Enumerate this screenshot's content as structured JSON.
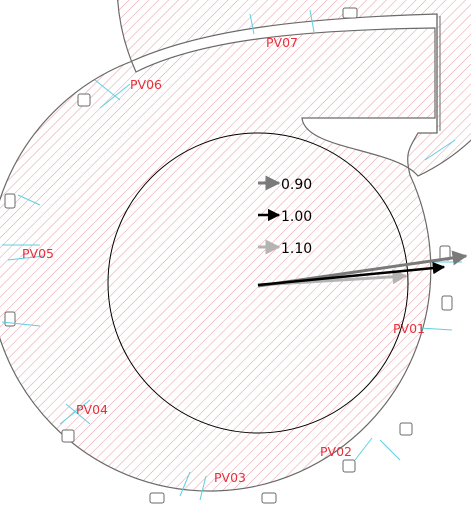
{
  "colors": {
    "hatch": "#e89aa4",
    "outline": "#6a6a6a",
    "probe_label": "#e8303c",
    "cyan": "#5fd0e0",
    "arrow_dark_gray": "#7a7a7a",
    "arrow_black": "#000000",
    "arrow_light_gray": "#b4b4b4",
    "circle": "#000000"
  },
  "probes": [
    {
      "id": "PV01",
      "label": "PV01"
    },
    {
      "id": "PV02",
      "label": "PV02"
    },
    {
      "id": "PV03",
      "label": "PV03"
    },
    {
      "id": "PV04",
      "label": "PV04"
    },
    {
      "id": "PV05",
      "label": "PV05"
    },
    {
      "id": "PV06",
      "label": "PV06"
    },
    {
      "id": "PV07",
      "label": "PV07"
    }
  ],
  "legend": [
    {
      "value": "0.90",
      "color": "#7a7a7a"
    },
    {
      "value": "1.00",
      "color": "#000000"
    },
    {
      "value": "1.10",
      "color": "#b4b4b4"
    }
  ]
}
